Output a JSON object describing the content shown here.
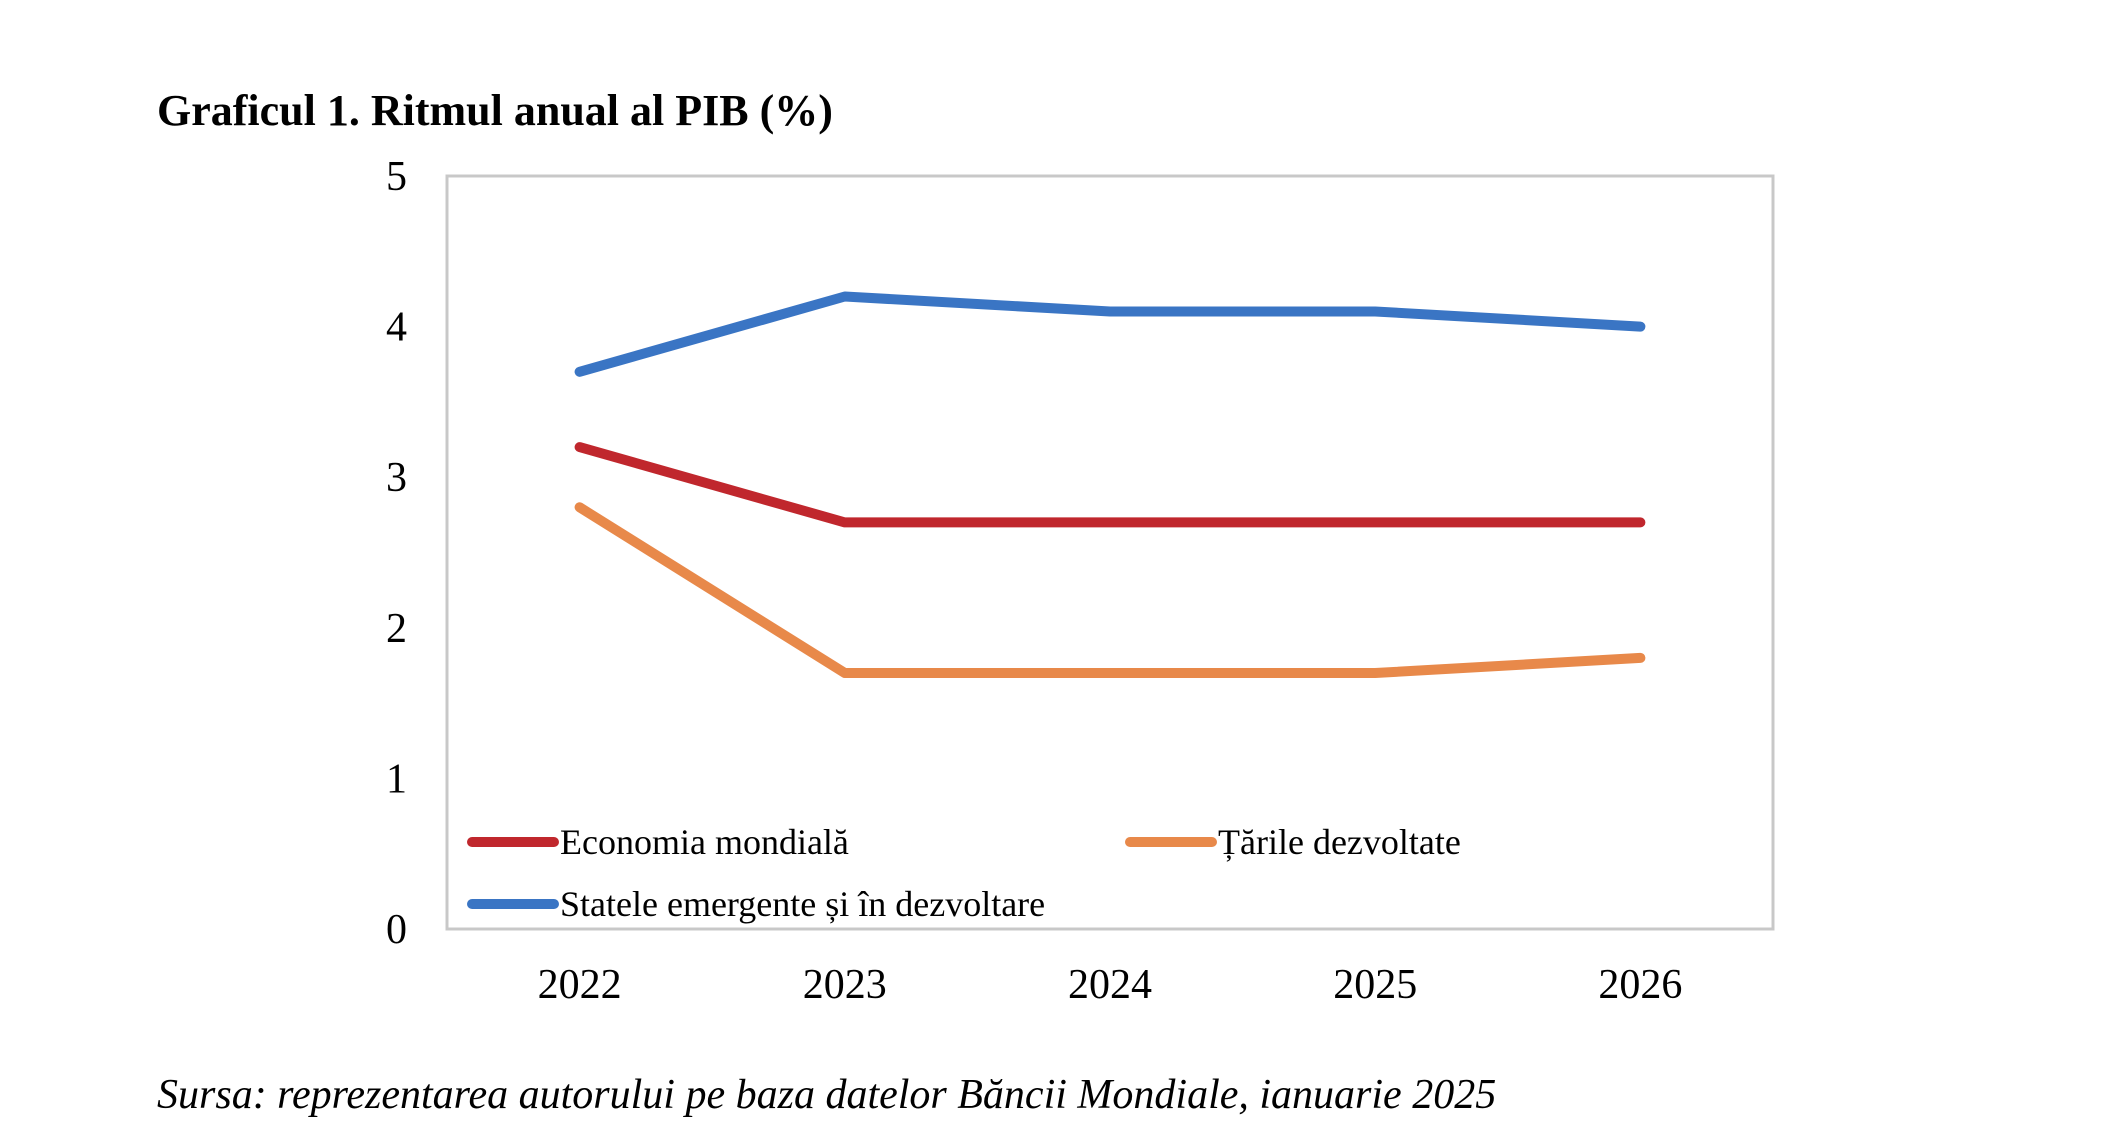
{
  "chart_data": {
    "type": "line",
    "title": "Graficul 1. Ritmul anual al PIB (%)",
    "source": "Sursa: reprezentarea autorului pe baza datelor Băncii Mondiale, ianuarie 2025",
    "categories": [
      "2022",
      "2023",
      "2024",
      "2025",
      "2026"
    ],
    "ylim": [
      0,
      5
    ],
    "yticks": [
      "0",
      "1",
      "2",
      "3",
      "4",
      "5"
    ],
    "grid": false,
    "legend_position": "bottom-left inside plot",
    "series": [
      {
        "name": "Economia mondială",
        "color": "#C0272D",
        "values": [
          3.2,
          2.7,
          2.7,
          2.7,
          2.7
        ]
      },
      {
        "name": "Țările dezvoltate",
        "color": "#E8894A",
        "values": [
          2.8,
          1.7,
          1.7,
          1.7,
          1.8
        ]
      },
      {
        "name": "Statele emergente și în dezvoltare",
        "color": "#3A75C4",
        "values": [
          3.7,
          4.2,
          4.1,
          4.1,
          4.0
        ]
      }
    ]
  }
}
